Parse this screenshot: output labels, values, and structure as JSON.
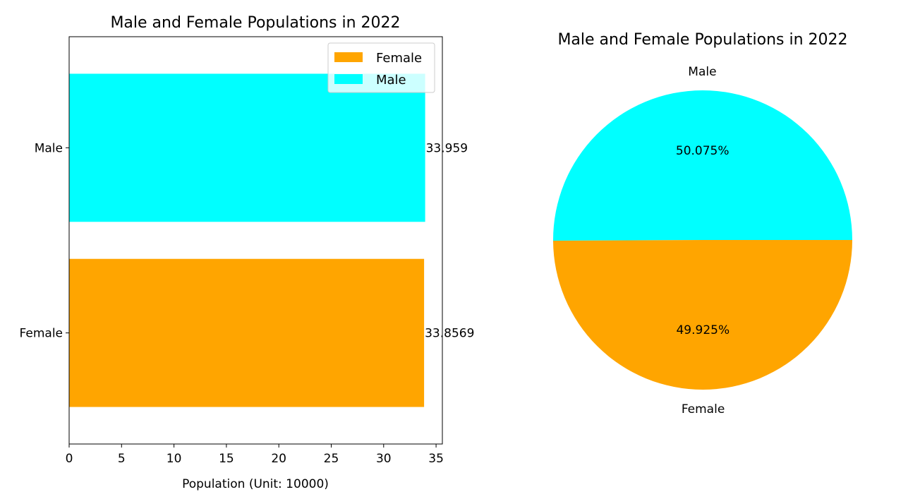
{
  "chart_data": [
    {
      "type": "bar",
      "orientation": "horizontal",
      "title": "Male and Female Populations in 2022",
      "xlabel": "Population (Unit: 10000)",
      "ylabel": "",
      "categories": [
        "Female",
        "Male"
      ],
      "values": [
        33.8569,
        33.959
      ],
      "value_labels": [
        "33.8569",
        "33.959"
      ],
      "colors": [
        "#ffa500",
        "#00ffff"
      ],
      "xlim": [
        0,
        35.6
      ],
      "xticks": [
        0,
        5,
        10,
        15,
        20,
        25,
        30,
        35
      ],
      "grid": false,
      "legend": {
        "placement": "upper right",
        "entries": [
          {
            "label": "Female",
            "color": "#ffa500"
          },
          {
            "label": "Male",
            "color": "#00ffff"
          }
        ]
      }
    },
    {
      "type": "pie",
      "title": "Male and Female Populations in 2022",
      "slices": [
        {
          "label": "Male",
          "value": 50.075,
          "pct_label": "50.075%",
          "color": "#00ffff"
        },
        {
          "label": "Female",
          "value": 49.925,
          "pct_label": "49.925%",
          "color": "#ffa500"
        }
      ]
    }
  ]
}
